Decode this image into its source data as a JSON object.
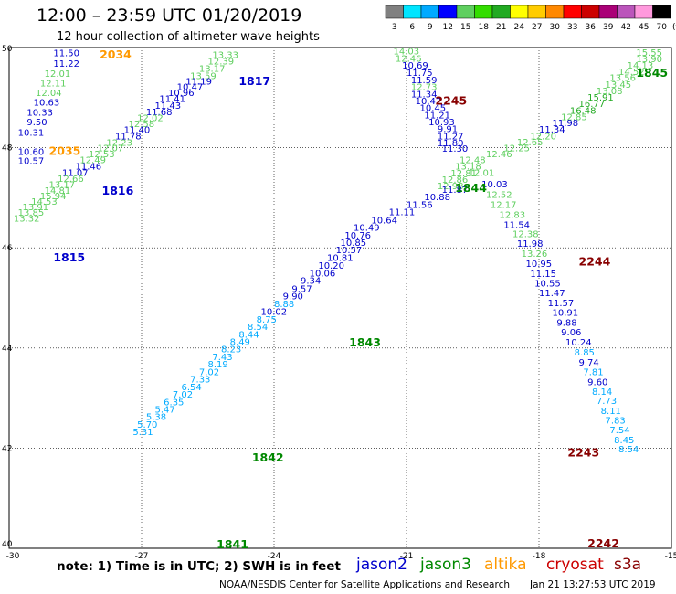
{
  "header": {
    "title": "12:00 – 23:59 UTC 01/20/2019",
    "subtitle": "12 hour collection of altimeter wave heights"
  },
  "colorbar": {
    "unit": "(ft)",
    "ticks": [
      "3",
      "6",
      "9",
      "12",
      "15",
      "18",
      "21",
      "24",
      "27",
      "30",
      "33",
      "36",
      "39",
      "42",
      "45",
      "70"
    ],
    "colors": [
      "#808080",
      "#00e5ff",
      "#00aaff",
      "#0000ff",
      "#5fcf5f",
      "#33dd00",
      "#22aa22",
      "#ffff00",
      "#ffcc00",
      "#ff8800",
      "#ff0000",
      "#cc0000",
      "#aa0077",
      "#bb55bb",
      "#ff99dd",
      "#000000"
    ]
  },
  "map": {
    "xticks": [
      "-30",
      "-27",
      "-24",
      "-21",
      "-18",
      "-15"
    ],
    "yticks": [
      "50",
      "48",
      "46",
      "44",
      "42",
      "40"
    ]
  },
  "passes": [
    {
      "label": "2034",
      "color": "#ff9900",
      "lon": -27.95,
      "lat": 49.78
    },
    {
      "label": "2035",
      "color": "#ff9900",
      "lon": -29.1,
      "lat": 47.86
    },
    {
      "label": "1817",
      "color": "#0000cc",
      "lon": -24.8,
      "lat": 49.25
    },
    {
      "label": "1816",
      "color": "#0000cc",
      "lon": -27.9,
      "lat": 47.06
    },
    {
      "label": "1815",
      "color": "#0000cc",
      "lon": -29.0,
      "lat": 45.73
    },
    {
      "label": "2245",
      "color": "#880000",
      "lon": -20.35,
      "lat": 48.86
    },
    {
      "label": "1845",
      "color": "#008800",
      "lon": -15.8,
      "lat": 49.42
    },
    {
      "label": "1844",
      "color": "#008800",
      "lon": -19.9,
      "lat": 47.12
    },
    {
      "label": "2244",
      "color": "#880000",
      "lon": -17.1,
      "lat": 45.65
    },
    {
      "label": "1843",
      "color": "#008800",
      "lon": -22.3,
      "lat": 44.03
    },
    {
      "label": "1842",
      "color": "#008800",
      "lon": -24.5,
      "lat": 41.73
    },
    {
      "label": "1841",
      "color": "#008800",
      "lon": -25.3,
      "lat": 40.0
    },
    {
      "label": "2243",
      "color": "#880000",
      "lon": -17.35,
      "lat": 41.83
    },
    {
      "label": "2242",
      "color": "#880000",
      "lon": -16.9,
      "lat": 40.02
    }
  ],
  "observations": [
    {
      "v": "11.50",
      "c": "#0000cc",
      "lon": -29.0,
      "lat": 49.83
    },
    {
      "v": "11.22",
      "c": "#0000cc",
      "lon": -29.0,
      "lat": 49.62
    },
    {
      "v": "12.01",
      "c": "#5fcf5f",
      "lon": -29.2,
      "lat": 49.42
    },
    {
      "v": "12.11",
      "c": "#5fcf5f",
      "lon": -29.3,
      "lat": 49.22
    },
    {
      "v": "12.04",
      "c": "#5fcf5f",
      "lon": -29.4,
      "lat": 49.03
    },
    {
      "v": "10.63",
      "c": "#0000cc",
      "lon": -29.45,
      "lat": 48.84
    },
    {
      "v": "10.33",
      "c": "#0000cc",
      "lon": -29.6,
      "lat": 48.64
    },
    {
      "v": "9.50",
      "c": "#0000cc",
      "lon": -29.6,
      "lat": 48.45
    },
    {
      "v": "10.31",
      "c": "#0000cc",
      "lon": -29.8,
      "lat": 48.24
    },
    {
      "v": "10.60",
      "c": "#0000cc",
      "lon": -29.8,
      "lat": 47.86
    },
    {
      "v": "10.57",
      "c": "#0000cc",
      "lon": -29.8,
      "lat": 47.67
    },
    {
      "v": "13.33",
      "c": "#5fcf5f",
      "lon": -25.4,
      "lat": 49.79
    },
    {
      "v": "12.39",
      "c": "#5fcf5f",
      "lon": -25.5,
      "lat": 49.66
    },
    {
      "v": "13.17",
      "c": "#5fcf5f",
      "lon": -25.7,
      "lat": 49.52
    },
    {
      "v": "13.59",
      "c": "#5fcf5f",
      "lon": -25.9,
      "lat": 49.37
    },
    {
      "v": "11.19",
      "c": "#0000cc",
      "lon": -26.0,
      "lat": 49.26
    },
    {
      "v": "10.47",
      "c": "#0000cc",
      "lon": -26.2,
      "lat": 49.15
    },
    {
      "v": "10.96",
      "c": "#0000cc",
      "lon": -26.4,
      "lat": 49.03
    },
    {
      "v": "11.41",
      "c": "#0000cc",
      "lon": -26.6,
      "lat": 48.91
    },
    {
      "v": "11.43",
      "c": "#0000cc",
      "lon": -26.7,
      "lat": 48.78
    },
    {
      "v": "11.68",
      "c": "#0000cc",
      "lon": -26.9,
      "lat": 48.65
    },
    {
      "v": "12.02",
      "c": "#5fcf5f",
      "lon": -27.1,
      "lat": 48.53
    },
    {
      "v": "12.58",
      "c": "#5fcf5f",
      "lon": -27.3,
      "lat": 48.41
    },
    {
      "v": "11.40",
      "c": "#0000cc",
      "lon": -27.4,
      "lat": 48.29
    },
    {
      "v": "11.78",
      "c": "#0000cc",
      "lon": -27.6,
      "lat": 48.17
    },
    {
      "v": "12.23",
      "c": "#5fcf5f",
      "lon": -27.8,
      "lat": 48.04
    },
    {
      "v": "12.07",
      "c": "#5fcf5f",
      "lon": -28.0,
      "lat": 47.93
    },
    {
      "v": "12.53",
      "c": "#5fcf5f",
      "lon": -28.2,
      "lat": 47.81
    },
    {
      "v": "12.49",
      "c": "#5fcf5f",
      "lon": -28.4,
      "lat": 47.69
    },
    {
      "v": "11.46",
      "c": "#0000cc",
      "lon": -28.5,
      "lat": 47.56
    },
    {
      "v": "11.07",
      "c": "#0000cc",
      "lon": -28.8,
      "lat": 47.44
    },
    {
      "v": "12.66",
      "c": "#5fcf5f",
      "lon": -28.9,
      "lat": 47.32
    },
    {
      "v": "13.17",
      "c": "#5fcf5f",
      "lon": -29.1,
      "lat": 47.2
    },
    {
      "v": "14.81",
      "c": "#5fcf5f",
      "lon": -29.2,
      "lat": 47.08
    },
    {
      "v": "15.94",
      "c": "#5fcf5f",
      "lon": -29.3,
      "lat": 46.97
    },
    {
      "v": "14.53",
      "c": "#5fcf5f",
      "lon": -29.5,
      "lat": 46.86
    },
    {
      "v": "13.91",
      "c": "#5fcf5f",
      "lon": -29.7,
      "lat": 46.75
    },
    {
      "v": "13.85",
      "c": "#5fcf5f",
      "lon": -29.8,
      "lat": 46.64
    },
    {
      "v": "13.32",
      "c": "#5fcf5f",
      "lon": -29.9,
      "lat": 46.52
    },
    {
      "v": "14.03",
      "c": "#5fcf5f",
      "lon": -21.3,
      "lat": 49.86
    },
    {
      "v": "12.46",
      "c": "#5fcf5f",
      "lon": -21.25,
      "lat": 49.72
    },
    {
      "v": "10.69",
      "c": "#0000cc",
      "lon": -21.1,
      "lat": 49.58
    },
    {
      "v": "11.75",
      "c": "#0000cc",
      "lon": -21.0,
      "lat": 49.43
    },
    {
      "v": "11.59",
      "c": "#0000cc",
      "lon": -20.9,
      "lat": 49.29
    },
    {
      "v": "12.73",
      "c": "#5fcf5f",
      "lon": -20.9,
      "lat": 49.15
    },
    {
      "v": "11.34",
      "c": "#0000cc",
      "lon": -20.9,
      "lat": 49.01
    },
    {
      "v": "10.42",
      "c": "#0000cc",
      "lon": -20.8,
      "lat": 48.87
    },
    {
      "v": "10.45",
      "c": "#0000cc",
      "lon": -20.7,
      "lat": 48.73
    },
    {
      "v": "11.21",
      "c": "#0000cc",
      "lon": -20.6,
      "lat": 48.59
    },
    {
      "v": "10.93",
      "c": "#0000cc",
      "lon": -20.5,
      "lat": 48.45
    },
    {
      "v": "9.91",
      "c": "#0000cc",
      "lon": -20.3,
      "lat": 48.31
    },
    {
      "v": "11.27",
      "c": "#0000cc",
      "lon": -20.3,
      "lat": 48.17
    },
    {
      "v": "11.80",
      "c": "#0000cc",
      "lon": -20.3,
      "lat": 48.03
    },
    {
      "v": "11.30",
      "c": "#0000cc",
      "lon": -20.2,
      "lat": 47.92
    },
    {
      "v": "15.55",
      "c": "#5fcf5f",
      "lon": -15.8,
      "lat": 49.84
    },
    {
      "v": "13.90",
      "c": "#5fcf5f",
      "lon": -15.8,
      "lat": 49.71
    },
    {
      "v": "14.13",
      "c": "#5fcf5f",
      "lon": -16.0,
      "lat": 49.58
    },
    {
      "v": "14.52",
      "c": "#5fcf5f",
      "lon": -16.2,
      "lat": 49.45
    },
    {
      "v": "13.56",
      "c": "#5fcf5f",
      "lon": -16.4,
      "lat": 49.33
    },
    {
      "v": "13.45",
      "c": "#5fcf5f",
      "lon": -16.5,
      "lat": 49.2
    },
    {
      "v": "13.08",
      "c": "#5fcf5f",
      "lon": -16.7,
      "lat": 49.07
    },
    {
      "v": "15.91",
      "c": "#22aa22",
      "lon": -16.9,
      "lat": 48.94
    },
    {
      "v": "16.77",
      "c": "#22aa22",
      "lon": -17.1,
      "lat": 48.81
    },
    {
      "v": "16.48",
      "c": "#22aa22",
      "lon": -17.3,
      "lat": 48.68
    },
    {
      "v": "12.85",
      "c": "#5fcf5f",
      "lon": -17.5,
      "lat": 48.55
    },
    {
      "v": "11.98",
      "c": "#0000cc",
      "lon": -17.7,
      "lat": 48.43
    },
    {
      "v": "11.34",
      "c": "#0000cc",
      "lon": -18.0,
      "lat": 48.3
    },
    {
      "v": "12.20",
      "c": "#5fcf5f",
      "lon": -18.2,
      "lat": 48.17
    },
    {
      "v": "12.65",
      "c": "#5fcf5f",
      "lon": -18.5,
      "lat": 48.05
    },
    {
      "v": "12.25",
      "c": "#5fcf5f",
      "lon": -18.8,
      "lat": 47.93
    },
    {
      "v": "12.46",
      "c": "#5fcf5f",
      "lon": -19.2,
      "lat": 47.81
    },
    {
      "v": "12.48",
      "c": "#5fcf5f",
      "lon": -19.8,
      "lat": 47.69
    },
    {
      "v": "13.18",
      "c": "#5fcf5f",
      "lon": -19.9,
      "lat": 47.56
    },
    {
      "v": "12.81",
      "c": "#5fcf5f",
      "lon": -20.0,
      "lat": 47.43
    },
    {
      "v": "12.01",
      "c": "#5fcf5f",
      "lon": -19.6,
      "lat": 47.44
    },
    {
      "v": "10.03",
      "c": "#0000cc",
      "lon": -19.3,
      "lat": 47.21
    },
    {
      "v": "12.86",
      "c": "#5fcf5f",
      "lon": -20.2,
      "lat": 47.3
    },
    {
      "v": "12.98",
      "c": "#5fcf5f",
      "lon": -20.3,
      "lat": 47.17
    },
    {
      "v": "12.52",
      "c": "#5fcf5f",
      "lon": -19.2,
      "lat": 47.0
    },
    {
      "v": "12.17",
      "c": "#5fcf5f",
      "lon": -19.1,
      "lat": 46.8
    },
    {
      "v": "12.83",
      "c": "#5fcf5f",
      "lon": -18.9,
      "lat": 46.6
    },
    {
      "v": "11.54",
      "c": "#0000cc",
      "lon": -18.8,
      "lat": 46.4
    },
    {
      "v": "12.38",
      "c": "#5fcf5f",
      "lon": -18.6,
      "lat": 46.21
    },
    {
      "v": "11.98",
      "c": "#0000cc",
      "lon": -18.5,
      "lat": 46.02
    },
    {
      "v": "13.26",
      "c": "#5fcf5f",
      "lon": -18.4,
      "lat": 45.82
    },
    {
      "v": "10.95",
      "c": "#0000cc",
      "lon": -18.3,
      "lat": 45.62
    },
    {
      "v": "11.15",
      "c": "#0000cc",
      "lon": -18.2,
      "lat": 45.42
    },
    {
      "v": "10.55",
      "c": "#0000cc",
      "lon": -18.1,
      "lat": 45.23
    },
    {
      "v": "11.47",
      "c": "#0000cc",
      "lon": -18.0,
      "lat": 45.04
    },
    {
      "v": "11.57",
      "c": "#0000cc",
      "lon": -17.8,
      "lat": 44.84
    },
    {
      "v": "10.91",
      "c": "#0000cc",
      "lon": -17.7,
      "lat": 44.64
    },
    {
      "v": "9.88",
      "c": "#0000cc",
      "lon": -17.6,
      "lat": 44.44
    },
    {
      "v": "9.06",
      "c": "#0000cc",
      "lon": -17.5,
      "lat": 44.25
    },
    {
      "v": "10.24",
      "c": "#0000cc",
      "lon": -17.4,
      "lat": 44.05
    },
    {
      "v": "8.85",
      "c": "#00aaff",
      "lon": -17.2,
      "lat": 43.85
    },
    {
      "v": "9.74",
      "c": "#0000cc",
      "lon": -17.1,
      "lat": 43.65
    },
    {
      "v": "7.81",
      "c": "#00aaff",
      "lon": -17.0,
      "lat": 43.46
    },
    {
      "v": "9.60",
      "c": "#0000cc",
      "lon": -16.9,
      "lat": 43.26
    },
    {
      "v": "8.14",
      "c": "#00aaff",
      "lon": -16.8,
      "lat": 43.07
    },
    {
      "v": "7.73",
      "c": "#00aaff",
      "lon": -16.7,
      "lat": 42.88
    },
    {
      "v": "8.11",
      "c": "#00aaff",
      "lon": -16.6,
      "lat": 42.68
    },
    {
      "v": "7.83",
      "c": "#00aaff",
      "lon": -16.5,
      "lat": 42.49
    },
    {
      "v": "7.54",
      "c": "#00aaff",
      "lon": -16.4,
      "lat": 42.3
    },
    {
      "v": "8.45",
      "c": "#00aaff",
      "lon": -16.3,
      "lat": 42.1
    },
    {
      "v": "8.54",
      "c": "#00aaff",
      "lon": -16.2,
      "lat": 41.92
    },
    {
      "v": "11.87",
      "c": "#0000cc",
      "lon": -20.2,
      "lat": 47.1
    },
    {
      "v": "10.88",
      "c": "#0000cc",
      "lon": -20.6,
      "lat": 46.95
    },
    {
      "v": "11.56",
      "c": "#0000cc",
      "lon": -21.0,
      "lat": 46.8
    },
    {
      "v": "11.11",
      "c": "#0000cc",
      "lon": -21.4,
      "lat": 46.65
    },
    {
      "v": "10.64",
      "c": "#0000cc",
      "lon": -21.8,
      "lat": 46.49
    },
    {
      "v": "10.49",
      "c": "#0000cc",
      "lon": -22.2,
      "lat": 46.34
    },
    {
      "v": "10.76",
      "c": "#0000cc",
      "lon": -22.4,
      "lat": 46.19
    },
    {
      "v": "10.85",
      "c": "#0000cc",
      "lon": -22.5,
      "lat": 46.04
    },
    {
      "v": "10.57",
      "c": "#0000cc",
      "lon": -22.6,
      "lat": 45.89
    },
    {
      "v": "10.81",
      "c": "#0000cc",
      "lon": -22.8,
      "lat": 45.74
    },
    {
      "v": "10.20",
      "c": "#0000cc",
      "lon": -23.0,
      "lat": 45.58
    },
    {
      "v": "10.06",
      "c": "#0000cc",
      "lon": -23.2,
      "lat": 45.43
    },
    {
      "v": "9.34",
      "c": "#0000cc",
      "lon": -23.4,
      "lat": 45.28
    },
    {
      "v": "9.57",
      "c": "#0000cc",
      "lon": -23.6,
      "lat": 45.12
    },
    {
      "v": "9.90",
      "c": "#0000cc",
      "lon": -23.8,
      "lat": 44.97
    },
    {
      "v": "8.88",
      "c": "#00aaff",
      "lon": -24.0,
      "lat": 44.82
    },
    {
      "v": "10.02",
      "c": "#0000cc",
      "lon": -24.3,
      "lat": 44.66
    },
    {
      "v": "8.75",
      "c": "#00aaff",
      "lon": -24.4,
      "lat": 44.51
    },
    {
      "v": "8.54",
      "c": "#00aaff",
      "lon": -24.6,
      "lat": 44.36
    },
    {
      "v": "8.44",
      "c": "#00aaff",
      "lon": -24.8,
      "lat": 44.21
    },
    {
      "v": "8.49",
      "c": "#00aaff",
      "lon": -25.0,
      "lat": 44.06
    },
    {
      "v": "8.23",
      "c": "#00aaff",
      "lon": -25.2,
      "lat": 43.91
    },
    {
      "v": "7.43",
      "c": "#00aaff",
      "lon": -25.4,
      "lat": 43.76
    },
    {
      "v": "8.19",
      "c": "#00aaff",
      "lon": -25.5,
      "lat": 43.61
    },
    {
      "v": "7.02",
      "c": "#00aaff",
      "lon": -25.7,
      "lat": 43.46
    },
    {
      "v": "7.33",
      "c": "#00aaff",
      "lon": -25.9,
      "lat": 43.31
    },
    {
      "v": "6.54",
      "c": "#00aaff",
      "lon": -26.1,
      "lat": 43.16
    },
    {
      "v": "7.02",
      "c": "#00aaff",
      "lon": -26.3,
      "lat": 43.01
    },
    {
      "v": "6.35",
      "c": "#00aaff",
      "lon": -26.5,
      "lat": 42.86
    },
    {
      "v": "5.47",
      "c": "#00aaff",
      "lon": -26.7,
      "lat": 42.71
    },
    {
      "v": "5.38",
      "c": "#00aaff",
      "lon": -26.9,
      "lat": 42.56
    },
    {
      "v": "5.70",
      "c": "#00aaff",
      "lon": -27.1,
      "lat": 42.41
    },
    {
      "v": "5.31",
      "c": "#00aaff",
      "lon": -27.2,
      "lat": 42.26
    }
  ],
  "footer": {
    "note": "note:  1) Time is in UTC;  2) SWH is in feet",
    "credit": "NOAA/NESDIS Center for Satellite Applications and Research",
    "date": "Jan 21 13:27:53 UTC 2019"
  },
  "satellites": [
    {
      "name": "jason2",
      "color": "#0000cc"
    },
    {
      "name": "jason3",
      "color": "#008800"
    },
    {
      "name": "altika",
      "color": "#ff9900"
    },
    {
      "name": "cryosat",
      "color": "#cc0000"
    },
    {
      "name": "s3a",
      "color": "#880000"
    }
  ]
}
